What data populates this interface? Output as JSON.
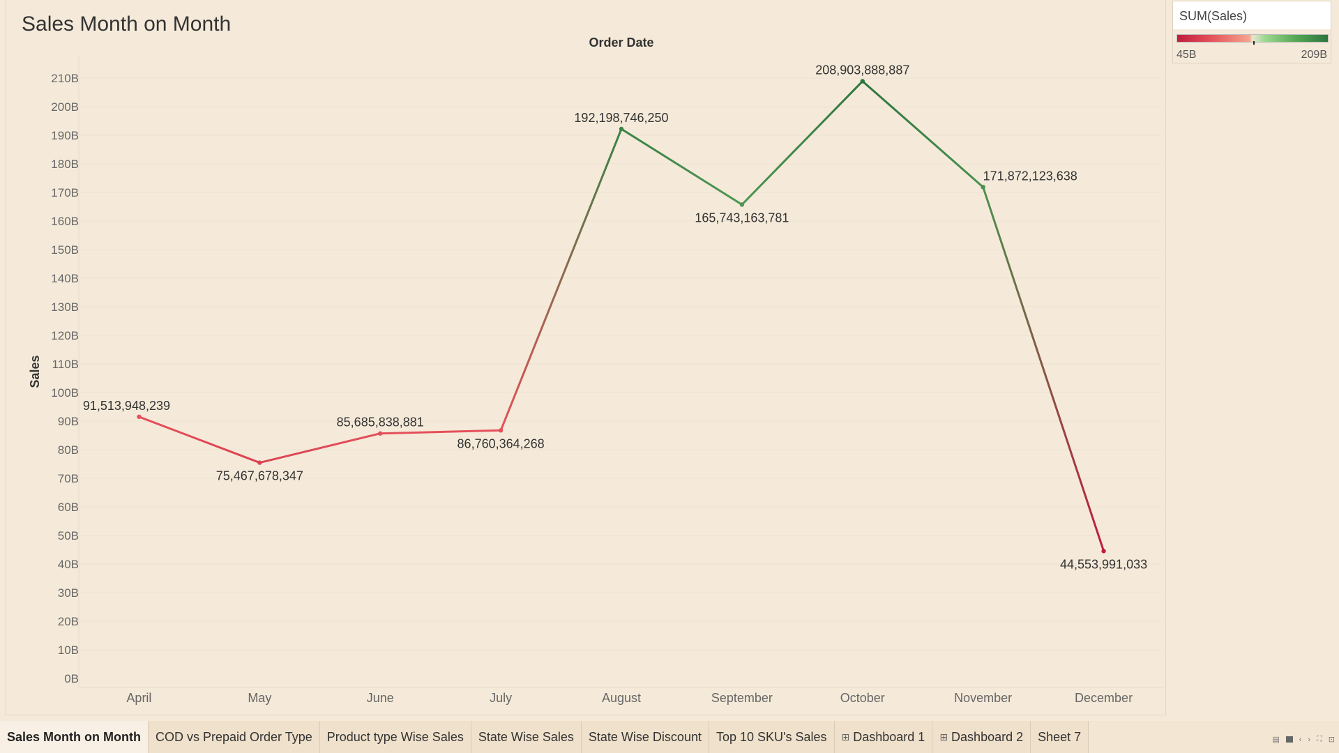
{
  "sheet_title": "Sales Month on Month",
  "chart_data": {
    "type": "line",
    "title": "Sales Month on Month",
    "top_axis_label": "Order Date",
    "ylabel": "Sales",
    "categories": [
      "April",
      "May",
      "June",
      "July",
      "August",
      "September",
      "October",
      "November",
      "December"
    ],
    "values": [
      91513948239,
      75467678347,
      85685838881,
      86760364268,
      192198746250,
      165743163781,
      208903888887,
      171872123638,
      44553991033
    ],
    "data_labels": [
      "91,513,948,239",
      "75,467,678,347",
      "85,685,838,881",
      "86,760,364,268",
      "192,198,746,250",
      "165,743,163,781",
      "208,903,888,887",
      "171,872,123,638",
      "44,553,991,033"
    ],
    "y_ticks": [
      "0B",
      "10B",
      "20B",
      "30B",
      "40B",
      "50B",
      "60B",
      "70B",
      "80B",
      "90B",
      "100B",
      "110B",
      "120B",
      "130B",
      "140B",
      "150B",
      "160B",
      "170B",
      "180B",
      "190B",
      "200B",
      "210B"
    ],
    "ylim": [
      0,
      215000000000
    ],
    "gridlines": true,
    "color_scale": {
      "low": "#c01d3c",
      "mid": "#e9e6d2",
      "high": "#2e7540"
    }
  },
  "legend": {
    "title": "SUM(Sales)",
    "min_label": "45B",
    "max_label": "209B",
    "marker_value": 127000000000
  },
  "tabs": [
    {
      "label": "Sales Month on Month",
      "active": true,
      "dashboard": false
    },
    {
      "label": "COD vs Prepaid Order Type",
      "active": false,
      "dashboard": false
    },
    {
      "label": "Product type Wise Sales",
      "active": false,
      "dashboard": false
    },
    {
      "label": "State Wise Sales",
      "active": false,
      "dashboard": false
    },
    {
      "label": "State Wise Discount",
      "active": false,
      "dashboard": false
    },
    {
      "label": "Top 10 SKU's Sales",
      "active": false,
      "dashboard": false
    },
    {
      "label": "Dashboard 1",
      "active": false,
      "dashboard": true
    },
    {
      "label": "Dashboard 2",
      "active": false,
      "dashboard": true
    },
    {
      "label": "Sheet 7",
      "active": false,
      "dashboard": false
    }
  ],
  "controls": [
    "show-sheets-icon",
    "filmstrip-icon",
    "prev-sheet-icon",
    "next-sheet-icon",
    "fullscreen-icon",
    "presentation-icon"
  ]
}
